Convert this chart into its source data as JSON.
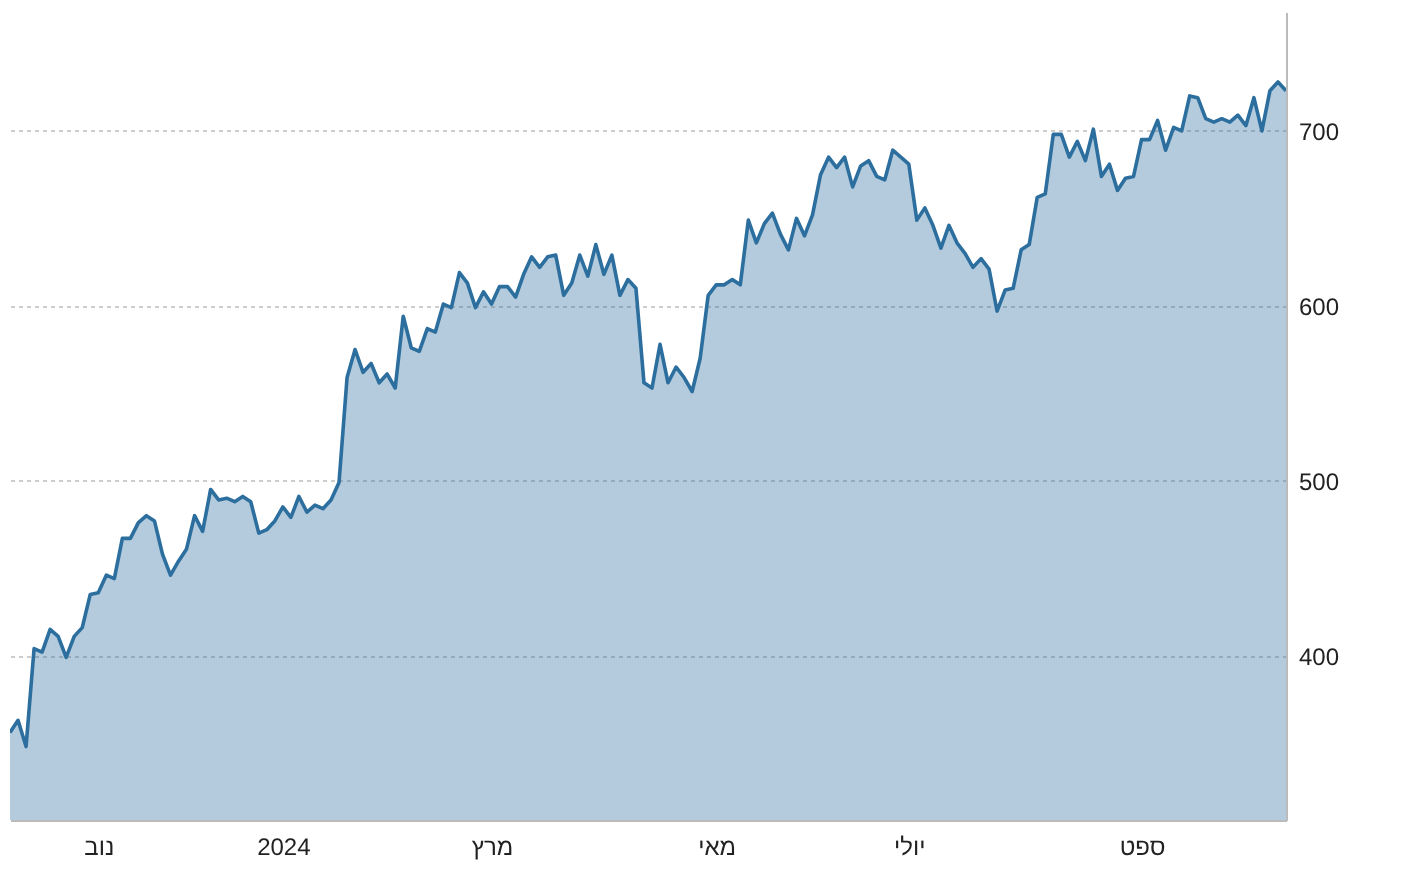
{
  "chart_data": {
    "type": "area",
    "grid": "y",
    "ylim": [
      306,
      768
    ],
    "yticks": [
      400,
      500,
      600,
      700
    ],
    "categories": [
      null,
      null,
      null,
      null,
      null,
      null,
      null,
      null,
      null,
      null,
      null,
      "נוב",
      null,
      null,
      null,
      null,
      null,
      null,
      null,
      null,
      null,
      null,
      null,
      null,
      null,
      null,
      null,
      null,
      null,
      null,
      null,
      null,
      null,
      null,
      "2024",
      null,
      null,
      null,
      null,
      null,
      null,
      null,
      null,
      null,
      null,
      null,
      null,
      null,
      null,
      null,
      null,
      null,
      null,
      null,
      null,
      null,
      null,
      null,
      null,
      null,
      "מרץ",
      null,
      null,
      null,
      null,
      null,
      null,
      null,
      null,
      null,
      null,
      null,
      null,
      null,
      null,
      null,
      null,
      null,
      null,
      null,
      null,
      null,
      null,
      null,
      null,
      null,
      null,
      null,
      "מאי",
      null,
      null,
      null,
      null,
      null,
      null,
      null,
      null,
      null,
      null,
      null,
      null,
      null,
      null,
      null,
      null,
      null,
      null,
      null,
      null,
      null,
      null,
      null,
      "יולי",
      null,
      null,
      null,
      null,
      null,
      null,
      null,
      null,
      null,
      null,
      null,
      null,
      null,
      null,
      null,
      null,
      null,
      null,
      null,
      null,
      null,
      null,
      null,
      null,
      null,
      null,
      null,
      null,
      "ספט",
      null,
      null,
      null,
      null,
      null,
      null,
      null,
      null,
      null,
      null,
      null,
      null,
      null,
      null,
      null,
      null,
      null,
      null
    ],
    "series": [
      {
        "color": "#2c6e9e",
        "values": [
          356,
          363,
          348,
          404,
          402,
          415,
          411,
          399,
          411,
          416,
          435,
          436,
          446,
          444,
          467,
          467,
          476,
          480,
          477,
          458,
          446,
          454,
          461,
          480,
          471,
          495,
          489,
          490,
          488,
          491,
          488,
          470,
          472,
          477,
          485,
          479,
          491,
          482,
          486,
          484,
          489,
          499,
          559,
          575,
          562,
          567,
          556,
          561,
          553,
          594,
          576,
          574,
          587,
          585,
          601,
          599,
          619,
          613,
          599,
          608,
          601,
          611,
          611,
          605,
          618,
          628,
          622,
          628,
          629,
          606,
          613,
          629,
          617,
          635,
          618,
          629,
          606,
          615,
          610,
          556,
          553,
          578,
          556,
          565,
          559,
          551,
          570,
          606,
          612,
          612,
          615,
          612,
          649,
          636,
          647,
          653,
          641,
          632,
          650,
          640,
          652,
          675,
          685,
          679,
          685,
          668,
          680,
          683,
          674,
          672,
          689,
          685,
          681,
          649,
          656,
          646,
          633,
          646,
          636,
          630,
          622,
          627,
          621,
          597,
          609,
          610,
          632,
          635,
          662,
          664,
          698,
          698,
          685,
          694,
          683,
          701,
          674,
          681,
          666,
          673,
          674,
          695,
          695,
          706,
          689,
          702,
          700,
          720,
          719,
          707,
          705,
          707,
          705,
          709,
          703,
          719,
          700,
          723,
          728,
          723
        ]
      }
    ]
  }
}
